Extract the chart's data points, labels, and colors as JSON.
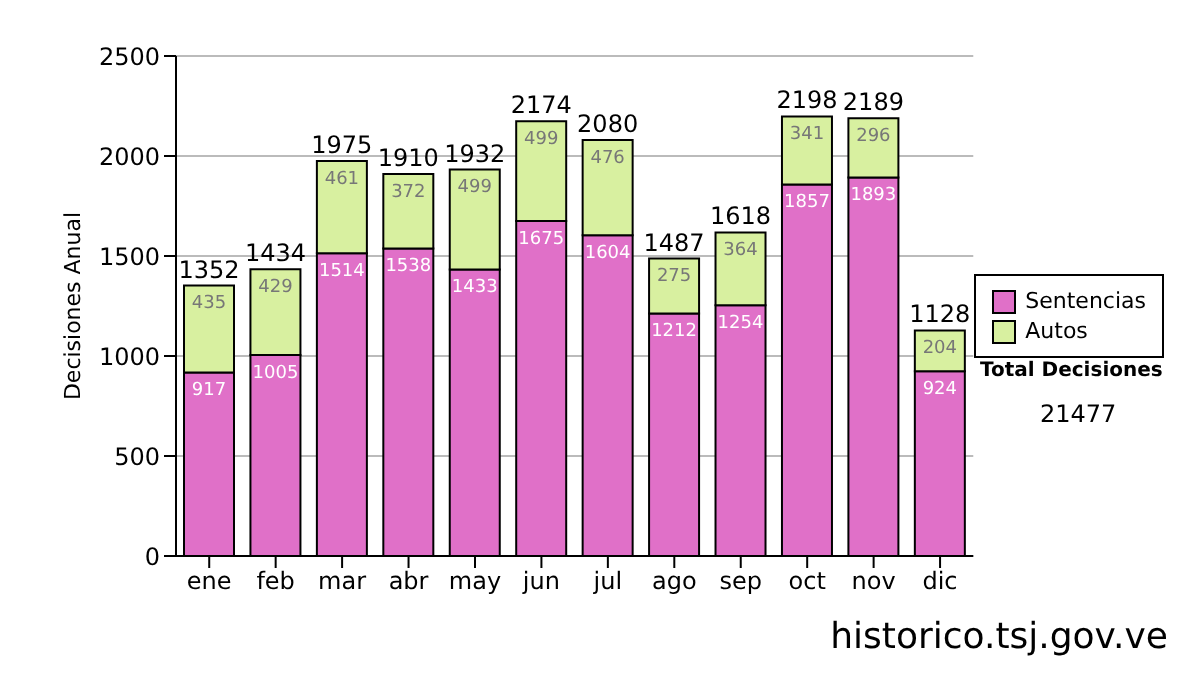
{
  "chart_data": {
    "type": "bar",
    "stacked": true,
    "ylabel": "Decisiones Anual",
    "categories": [
      "ene",
      "feb",
      "mar",
      "abr",
      "may",
      "jun",
      "jul",
      "ago",
      "sep",
      "oct",
      "nov",
      "dic"
    ],
    "series": [
      {
        "name": "Sentencias",
        "color": "#e070c8",
        "values": [
          917,
          1005,
          1514,
          1538,
          1433,
          1675,
          1604,
          1212,
          1254,
          1857,
          1893,
          924
        ]
      },
      {
        "name": "Autos",
        "color": "#d8f0a0",
        "values": [
          435,
          429,
          461,
          372,
          499,
          499,
          476,
          275,
          364,
          341,
          296,
          204
        ]
      }
    ],
    "totals": [
      "1352",
      "1434",
      "1975",
      "1910",
      "1932",
      "2174",
      "2080",
      "1487",
      "1618",
      "2198",
      "2189",
      "1128"
    ],
    "data_labels": true,
    "ylim": [
      0,
      2500
    ],
    "yticks": [
      0,
      500,
      1000,
      1500,
      2000,
      2500
    ],
    "grid": "y",
    "legend": "right",
    "annotations": [
      "Total Decisiones",
      "21477",
      "historico.tsj.gov.ve"
    ]
  }
}
